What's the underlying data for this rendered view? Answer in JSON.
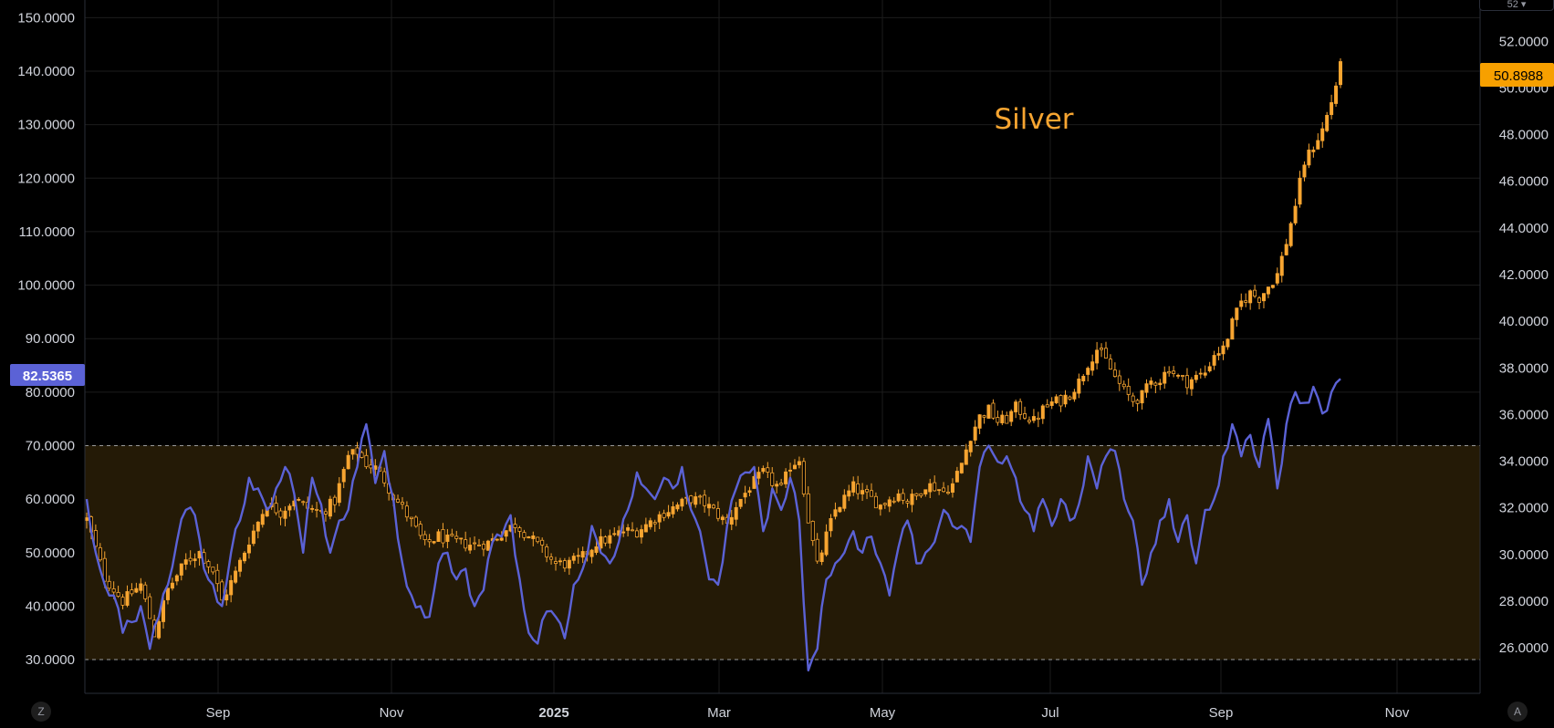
{
  "chart_data": {
    "type": "candlestick+line",
    "title": "Silver",
    "annotation": "Silver",
    "x_ticks": [
      "Sep",
      "Nov",
      "2025",
      "Mar",
      "May",
      "Jul",
      "Sep",
      "Nov"
    ],
    "left_axis": {
      "ticks": [
        "150.0000",
        "140.0000",
        "130.0000",
        "120.0000",
        "110.0000",
        "100.0000",
        "90.0000",
        "80.0000",
        "70.0000",
        "60.0000",
        "50.0000",
        "40.0000",
        "30.0000"
      ],
      "range": [
        23.7,
        153.3
      ],
      "current_label": "82.5365"
    },
    "right_axis": {
      "ticks": [
        "52.0000",
        "50.0000",
        "48.0000",
        "46.0000",
        "44.0000",
        "42.0000",
        "40.0000",
        "38.0000",
        "36.0000",
        "34.0000",
        "32.0000",
        "30.0000",
        "28.0000",
        "26.0000"
      ],
      "range": [
        24.05,
        53.77
      ],
      "current_label": "50.8988"
    },
    "band": {
      "upper": 70,
      "lower": 30
    },
    "colors": {
      "candle_up": "#f7a531",
      "candle_down": "#f7a531",
      "line": "#5b62d6",
      "band_fill": "#241a06",
      "band_border": "#9a9a9a",
      "left_label_bg": "#5b62d6",
      "right_label_bg": "#f7a000",
      "annotation": "#f7a531",
      "grid": "#1c1c1c"
    },
    "line_series_anchors": [
      [
        0,
        60
      ],
      [
        2,
        50
      ],
      [
        4,
        44
      ],
      [
        6,
        42
      ],
      [
        8,
        35
      ],
      [
        10,
        37
      ],
      [
        12,
        40
      ],
      [
        14,
        32
      ],
      [
        16,
        38
      ],
      [
        18,
        44
      ],
      [
        20,
        52
      ],
      [
        22,
        58
      ],
      [
        24,
        57
      ],
      [
        26,
        47
      ],
      [
        28,
        44
      ],
      [
        30,
        40
      ],
      [
        32,
        50
      ],
      [
        34,
        56
      ],
      [
        36,
        64
      ],
      [
        38,
        62
      ],
      [
        40,
        58
      ],
      [
        42,
        62
      ],
      [
        44,
        66
      ],
      [
        46,
        61
      ],
      [
        48,
        50
      ],
      [
        50,
        64
      ],
      [
        52,
        59
      ],
      [
        54,
        50
      ],
      [
        56,
        56
      ],
      [
        58,
        58
      ],
      [
        60,
        66
      ],
      [
        62,
        74
      ],
      [
        64,
        63
      ],
      [
        66,
        69
      ],
      [
        68,
        60
      ],
      [
        70,
        48
      ],
      [
        72,
        42
      ],
      [
        74,
        40
      ],
      [
        76,
        38
      ],
      [
        78,
        48
      ],
      [
        80,
        50
      ],
      [
        82,
        45
      ],
      [
        84,
        47
      ],
      [
        86,
        40
      ],
      [
        88,
        43
      ],
      [
        90,
        52
      ],
      [
        92,
        53
      ],
      [
        94,
        57
      ],
      [
        96,
        45
      ],
      [
        98,
        35
      ],
      [
        100,
        33
      ],
      [
        102,
        39
      ],
      [
        104,
        38
      ],
      [
        106,
        34
      ],
      [
        108,
        44
      ],
      [
        110,
        47
      ],
      [
        112,
        55
      ],
      [
        114,
        50
      ],
      [
        116,
        48
      ],
      [
        118,
        52
      ],
      [
        120,
        58
      ],
      [
        122,
        65
      ],
      [
        124,
        62
      ],
      [
        126,
        60
      ],
      [
        128,
        64
      ],
      [
        130,
        62
      ],
      [
        132,
        66
      ],
      [
        134,
        58
      ],
      [
        136,
        54
      ],
      [
        138,
        45
      ],
      [
        140,
        44
      ],
      [
        142,
        55
      ],
      [
        144,
        62
      ],
      [
        146,
        65
      ],
      [
        148,
        66
      ],
      [
        150,
        54
      ],
      [
        152,
        62
      ],
      [
        154,
        58
      ],
      [
        156,
        64
      ],
      [
        158,
        56
      ],
      [
        160,
        28
      ],
      [
        162,
        32
      ],
      [
        164,
        45
      ],
      [
        166,
        48
      ],
      [
        168,
        50
      ],
      [
        170,
        54
      ],
      [
        172,
        50
      ],
      [
        174,
        53
      ],
      [
        176,
        48
      ],
      [
        178,
        42
      ],
      [
        180,
        51
      ],
      [
        182,
        56
      ],
      [
        184,
        48
      ],
      [
        186,
        50
      ],
      [
        188,
        52
      ],
      [
        190,
        58
      ],
      [
        192,
        55
      ],
      [
        194,
        55
      ],
      [
        196,
        52
      ],
      [
        198,
        66
      ],
      [
        200,
        70
      ],
      [
        202,
        67
      ],
      [
        204,
        68
      ],
      [
        206,
        64
      ],
      [
        208,
        58
      ],
      [
        210,
        54
      ],
      [
        212,
        60
      ],
      [
        214,
        55
      ],
      [
        216,
        60
      ],
      [
        218,
        56
      ],
      [
        220,
        59
      ],
      [
        222,
        68
      ],
      [
        224,
        62
      ],
      [
        226,
        68
      ],
      [
        228,
        69
      ],
      [
        230,
        60
      ],
      [
        232,
        56
      ],
      [
        234,
        44
      ],
      [
        236,
        50
      ],
      [
        238,
        56
      ],
      [
        240,
        60
      ],
      [
        242,
        52
      ],
      [
        244,
        57
      ],
      [
        246,
        48
      ],
      [
        248,
        58
      ],
      [
        250,
        60
      ],
      [
        252,
        68
      ],
      [
        254,
        74
      ],
      [
        256,
        68
      ],
      [
        258,
        72
      ],
      [
        260,
        66
      ],
      [
        262,
        75
      ],
      [
        264,
        62
      ],
      [
        266,
        74
      ],
      [
        268,
        80
      ],
      [
        270,
        78
      ],
      [
        272,
        81
      ],
      [
        274,
        76
      ],
      [
        276,
        80
      ],
      [
        278,
        82.5
      ]
    ],
    "candle_series_anchors": [
      [
        0,
        31.5
      ],
      [
        4,
        29.0
      ],
      [
        8,
        28.0
      ],
      [
        12,
        28.7
      ],
      [
        15,
        26.6
      ],
      [
        18,
        28.5
      ],
      [
        22,
        29.7
      ],
      [
        25,
        30.1
      ],
      [
        28,
        29.3
      ],
      [
        30,
        28.0
      ],
      [
        33,
        29.2
      ],
      [
        36,
        30.6
      ],
      [
        40,
        32.2
      ],
      [
        43,
        31.8
      ],
      [
        46,
        32.4
      ],
      [
        49,
        32.0
      ],
      [
        52,
        31.8
      ],
      [
        55,
        32.3
      ],
      [
        58,
        34.2
      ],
      [
        60,
        34.4
      ],
      [
        62,
        33.9
      ],
      [
        64,
        33.7
      ],
      [
        66,
        33.2
      ],
      [
        68,
        32.5
      ],
      [
        70,
        32.0
      ],
      [
        72,
        31.4
      ],
      [
        75,
        30.4
      ],
      [
        78,
        30.8
      ],
      [
        80,
        30.6
      ],
      [
        83,
        30.5
      ],
      [
        86,
        30.4
      ],
      [
        89,
        30.5
      ],
      [
        92,
        30.9
      ],
      [
        95,
        31.3
      ],
      [
        98,
        30.8
      ],
      [
        101,
        30.2
      ],
      [
        104,
        29.6
      ],
      [
        107,
        29.6
      ],
      [
        110,
        29.9
      ],
      [
        113,
        30.5
      ],
      [
        116,
        30.7
      ],
      [
        119,
        31.0
      ],
      [
        122,
        31.0
      ],
      [
        125,
        31.4
      ],
      [
        128,
        31.8
      ],
      [
        131,
        32.1
      ],
      [
        134,
        32.4
      ],
      [
        137,
        32.2
      ],
      [
        140,
        31.7
      ],
      [
        142,
        31.3
      ],
      [
        144,
        32.1
      ],
      [
        147,
        32.9
      ],
      [
        150,
        33.5
      ],
      [
        152,
        33.1
      ],
      [
        154,
        32.8
      ],
      [
        156,
        33.8
      ],
      [
        158,
        34.1
      ],
      [
        160,
        31.5
      ],
      [
        162,
        29.5
      ],
      [
        164,
        30.8
      ],
      [
        166,
        31.9
      ],
      [
        168,
        32.4
      ],
      [
        170,
        32.9
      ],
      [
        172,
        32.6
      ],
      [
        174,
        32.4
      ],
      [
        176,
        32.1
      ],
      [
        178,
        32.4
      ],
      [
        180,
        32.6
      ],
      [
        182,
        32.3
      ],
      [
        184,
        32.5
      ],
      [
        186,
        33.0
      ],
      [
        188,
        32.9
      ],
      [
        190,
        32.7
      ],
      [
        192,
        33.0
      ],
      [
        194,
        33.9
      ],
      [
        196,
        35.1
      ],
      [
        198,
        35.9
      ],
      [
        200,
        36.2
      ],
      [
        202,
        35.7
      ],
      [
        204,
        35.8
      ],
      [
        206,
        36.3
      ],
      [
        208,
        36.0
      ],
      [
        210,
        35.7
      ],
      [
        212,
        36.2
      ],
      [
        214,
        36.5
      ],
      [
        216,
        36.6
      ],
      [
        218,
        36.9
      ],
      [
        220,
        37.4
      ],
      [
        222,
        38.2
      ],
      [
        224,
        38.8
      ],
      [
        226,
        38.3
      ],
      [
        228,
        37.6
      ],
      [
        230,
        37.0
      ],
      [
        232,
        36.6
      ],
      [
        234,
        36.8
      ],
      [
        236,
        37.4
      ],
      [
        238,
        37.5
      ],
      [
        240,
        38.0
      ],
      [
        242,
        37.6
      ],
      [
        244,
        37.4
      ],
      [
        246,
        37.6
      ],
      [
        248,
        37.8
      ],
      [
        250,
        38.6
      ],
      [
        252,
        38.8
      ],
      [
        254,
        39.9
      ],
      [
        256,
        40.8
      ],
      [
        258,
        41.2
      ],
      [
        260,
        41.0
      ],
      [
        262,
        41.5
      ],
      [
        264,
        42.0
      ],
      [
        266,
        43.4
      ],
      [
        268,
        45.0
      ],
      [
        270,
        46.8
      ],
      [
        272,
        47.5
      ],
      [
        274,
        48.2
      ],
      [
        276,
        49.4
      ],
      [
        278,
        50.9
      ]
    ]
  },
  "corner_left": "Z",
  "corner_right": "A",
  "top_right_button": "52 ▾"
}
